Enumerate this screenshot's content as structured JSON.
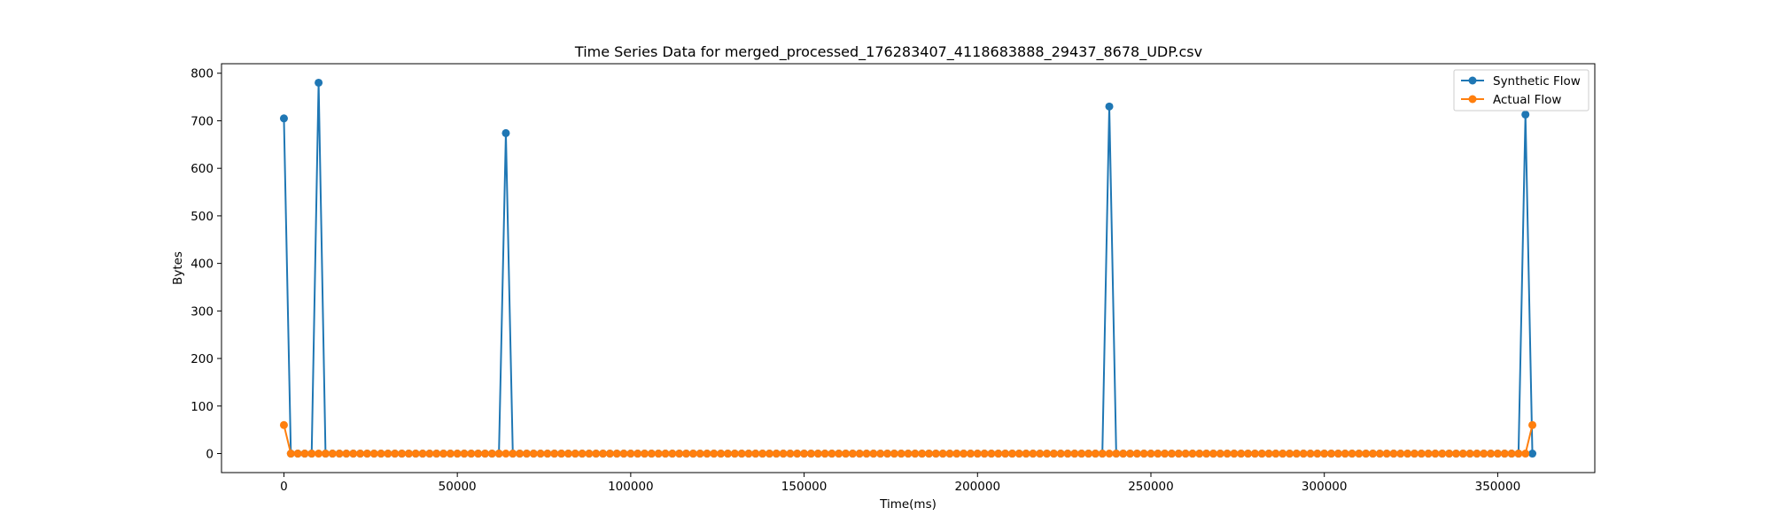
{
  "chart_data": {
    "type": "line",
    "title": "Time Series Data for merged_processed_176283407_4118683888_29437_8678_UDP.csv",
    "xlabel": "Time(ms)",
    "ylabel": "Bytes",
    "xlim": [
      -18000,
      378000
    ],
    "ylim": [
      -40,
      820
    ],
    "xticks": [
      0,
      50000,
      100000,
      150000,
      200000,
      250000,
      300000,
      350000
    ],
    "yticks": [
      0,
      100,
      200,
      300,
      400,
      500,
      600,
      700,
      800
    ],
    "x_sampling": {
      "start": 0,
      "step": 2000,
      "count": 181
    },
    "legend_position": "top-right",
    "grid": false,
    "series": [
      {
        "name": "Synthetic Flow",
        "color": "#1f77b4",
        "marker": "circle",
        "nonzero_points": [
          {
            "x": 0,
            "y": 705
          },
          {
            "x": 10000,
            "y": 780
          },
          {
            "x": 64000,
            "y": 674
          },
          {
            "x": 238000,
            "y": 730
          },
          {
            "x": 358000,
            "y": 713
          }
        ],
        "default_value": 0
      },
      {
        "name": "Actual Flow",
        "color": "#ff7f0e",
        "marker": "circle",
        "nonzero_points": [
          {
            "x": 0,
            "y": 60
          },
          {
            "x": 360000,
            "y": 60
          }
        ],
        "default_value": 0
      }
    ]
  }
}
